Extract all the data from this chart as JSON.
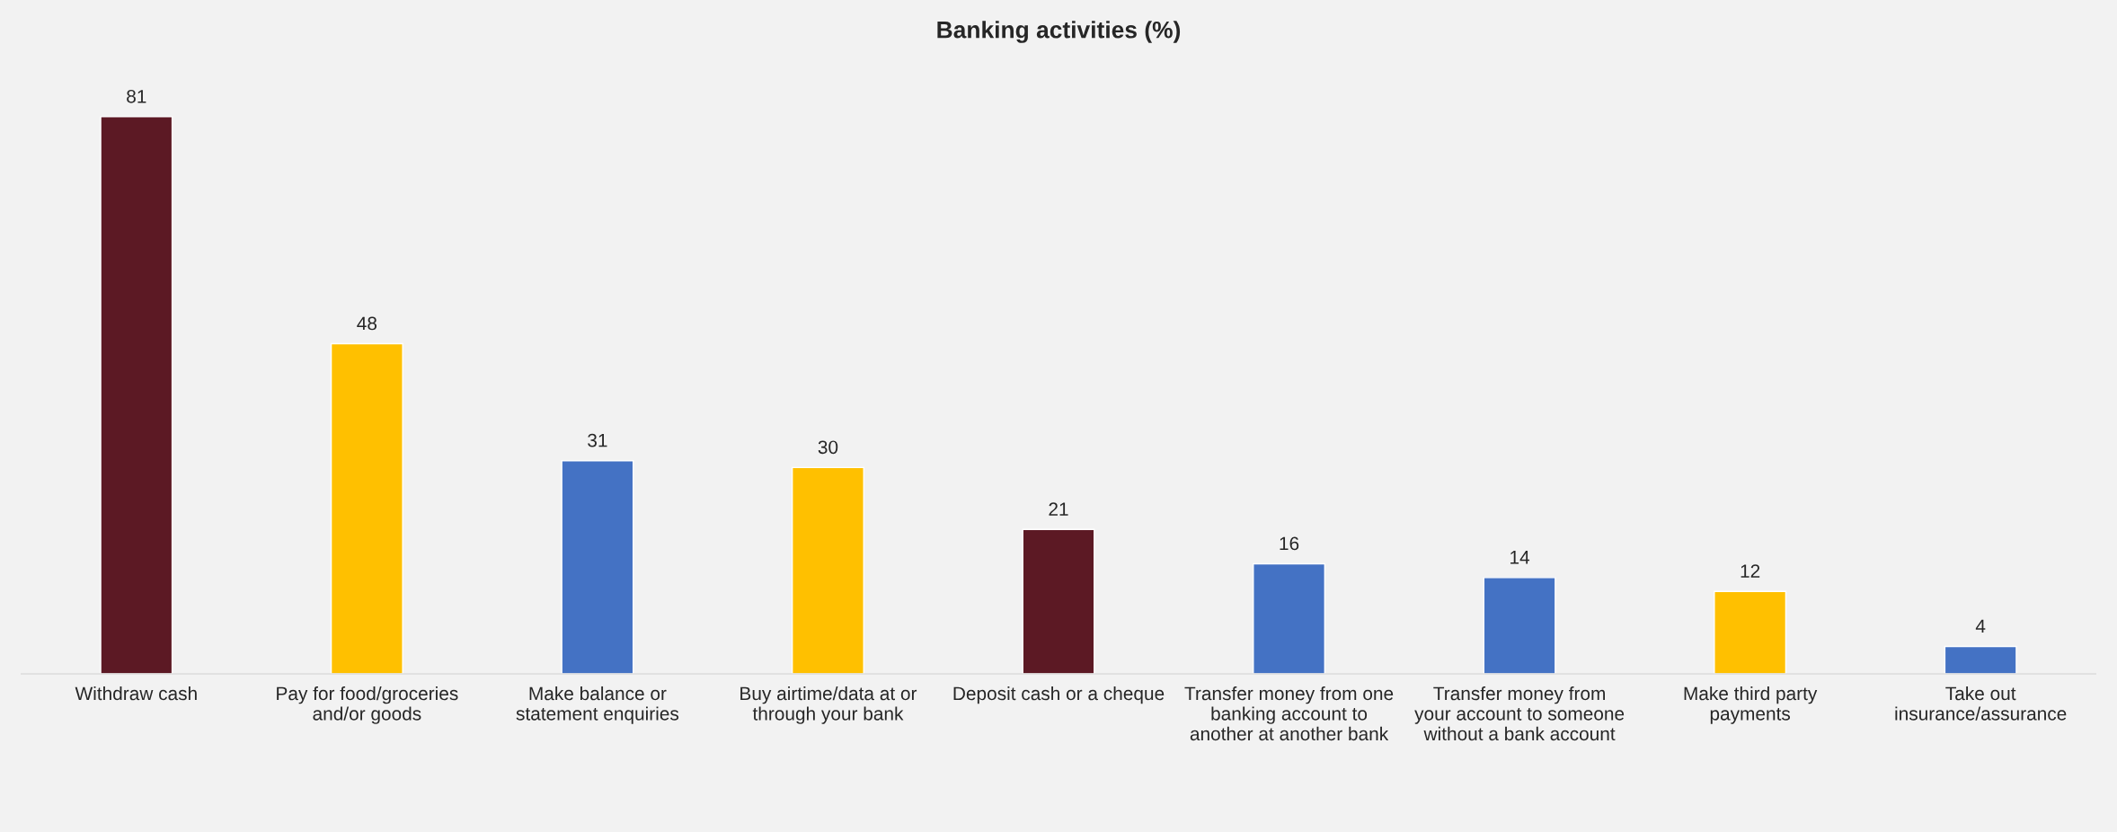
{
  "chart_data": {
    "type": "bar",
    "title": "Banking activities (%)",
    "categories": [
      "Withdraw cash",
      "Pay for food/groceries\nand/or goods",
      "Make balance or\nstatement enquiries",
      "Buy airtime/data at or\nthrough your bank",
      "Deposit cash or a cheque",
      "Transfer money from one\nbanking account to\nanother at another bank",
      "Transfer money from\nyour account to someone\nwithout a bank account",
      "Make third party\npayments",
      "Take out\ninsurance/assurance"
    ],
    "values": [
      81,
      48,
      31,
      30,
      21,
      16,
      14,
      12,
      4
    ],
    "colors": [
      "#5c1924",
      "#ffc000",
      "#4472c4",
      "#ffc000",
      "#5c1924",
      "#4472c4",
      "#4472c4",
      "#ffc000",
      "#4472c4"
    ],
    "data_labels": true,
    "grid": false,
    "legend": false
  }
}
